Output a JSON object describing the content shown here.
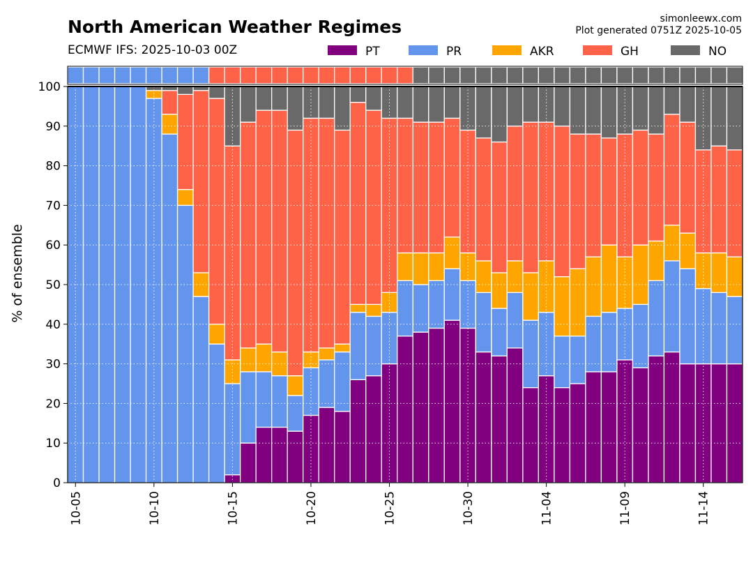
{
  "header": {
    "title": "North American Weather Regimes",
    "subtitle": "ECMWF IFS: 2025-10-03 00Z",
    "site": "simonleewx.com",
    "generated": "Plot generated 0751Z 2025-10-05"
  },
  "colors": {
    "PT": "#800080",
    "PR": "#6495ED",
    "AKR": "#FFA500",
    "GH": "#FF6347",
    "NO": "#696969"
  },
  "chart_data": {
    "type": "bar",
    "stacked": true,
    "title": "North American Weather Regimes",
    "ylabel": "% of ensemble",
    "xlabel": "",
    "ylim": [
      0,
      100
    ],
    "yticks": [
      0,
      10,
      20,
      30,
      40,
      50,
      60,
      70,
      80,
      90,
      100
    ],
    "xtick_labels": [
      "10-05",
      "10-10",
      "10-15",
      "10-20",
      "10-25",
      "10-30",
      "11-04",
      "11-09",
      "11-14"
    ],
    "xtick_index": [
      0,
      5,
      10,
      15,
      20,
      25,
      30,
      35,
      40
    ],
    "grid": true,
    "legend_position": "top",
    "categories": [
      "10-05",
      "10-06",
      "10-07",
      "10-08",
      "10-09",
      "10-10",
      "10-11",
      "10-12",
      "10-13",
      "10-14",
      "10-15",
      "10-16",
      "10-17",
      "10-18",
      "10-19",
      "10-20",
      "10-21",
      "10-22",
      "10-23",
      "10-24",
      "10-25",
      "10-26",
      "10-27",
      "10-28",
      "10-29",
      "10-30",
      "10-31",
      "11-01",
      "11-02",
      "11-03",
      "11-04",
      "11-05",
      "11-06",
      "11-07",
      "11-08",
      "11-09",
      "11-10",
      "11-11",
      "11-12",
      "11-13",
      "11-14",
      "11-15",
      "11-16"
    ],
    "series": [
      {
        "name": "PT",
        "values": [
          0,
          0,
          0,
          0,
          0,
          0,
          0,
          0,
          0,
          0,
          2,
          10,
          14,
          14,
          13,
          17,
          19,
          18,
          26,
          27,
          30,
          37,
          38,
          39,
          41,
          39,
          33,
          32,
          34,
          24,
          27,
          24,
          25,
          28,
          28,
          31,
          29,
          32,
          33,
          30,
          30,
          30,
          30
        ]
      },
      {
        "name": "PR",
        "values": [
          100,
          100,
          100,
          100,
          100,
          97,
          88,
          70,
          47,
          35,
          23,
          18,
          14,
          13,
          9,
          12,
          12,
          15,
          17,
          15,
          13,
          14,
          12,
          12,
          13,
          12,
          15,
          12,
          14,
          17,
          16,
          13,
          12,
          14,
          15,
          13,
          16,
          19,
          23,
          24,
          19,
          18,
          17
        ]
      },
      {
        "name": "AKR",
        "values": [
          0,
          0,
          0,
          0,
          0,
          2,
          5,
          4,
          6,
          5,
          6,
          6,
          7,
          6,
          5,
          4,
          3,
          2,
          2,
          3,
          5,
          7,
          8,
          7,
          8,
          7,
          8,
          9,
          8,
          12,
          13,
          15,
          17,
          15,
          17,
          13,
          15,
          10,
          9,
          9,
          9,
          10,
          10
        ]
      },
      {
        "name": "GH",
        "values": [
          0,
          0,
          0,
          0,
          0,
          0,
          6,
          24,
          46,
          57,
          54,
          57,
          59,
          61,
          62,
          59,
          58,
          54,
          51,
          49,
          44,
          34,
          33,
          33,
          30,
          31,
          31,
          33,
          34,
          38,
          35,
          38,
          34,
          31,
          27,
          31,
          29,
          27,
          28,
          28,
          26,
          27,
          27
        ]
      },
      {
        "name": "NO",
        "values": [
          0,
          0,
          0,
          0,
          0,
          1,
          1,
          2,
          1,
          3,
          15,
          9,
          6,
          6,
          11,
          8,
          8,
          11,
          4,
          6,
          8,
          8,
          9,
          9,
          8,
          11,
          13,
          14,
          10,
          9,
          9,
          10,
          12,
          12,
          13,
          12,
          11,
          12,
          7,
          9,
          16,
          15,
          16
        ]
      }
    ],
    "dominant_strip": [
      "PR",
      "PR",
      "PR",
      "PR",
      "PR",
      "PR",
      "PR",
      "PR",
      "PR",
      "GH",
      "GH",
      "GH",
      "GH",
      "GH",
      "GH",
      "GH",
      "GH",
      "GH",
      "GH",
      "GH",
      "GH",
      "GH",
      "NO",
      "NO",
      "NO",
      "NO",
      "NO",
      "NO",
      "NO",
      "NO",
      "NO",
      "NO",
      "NO",
      "NO",
      "NO",
      "NO",
      "NO",
      "NO",
      "NO",
      "NO",
      "NO",
      "NO",
      "NO"
    ]
  }
}
